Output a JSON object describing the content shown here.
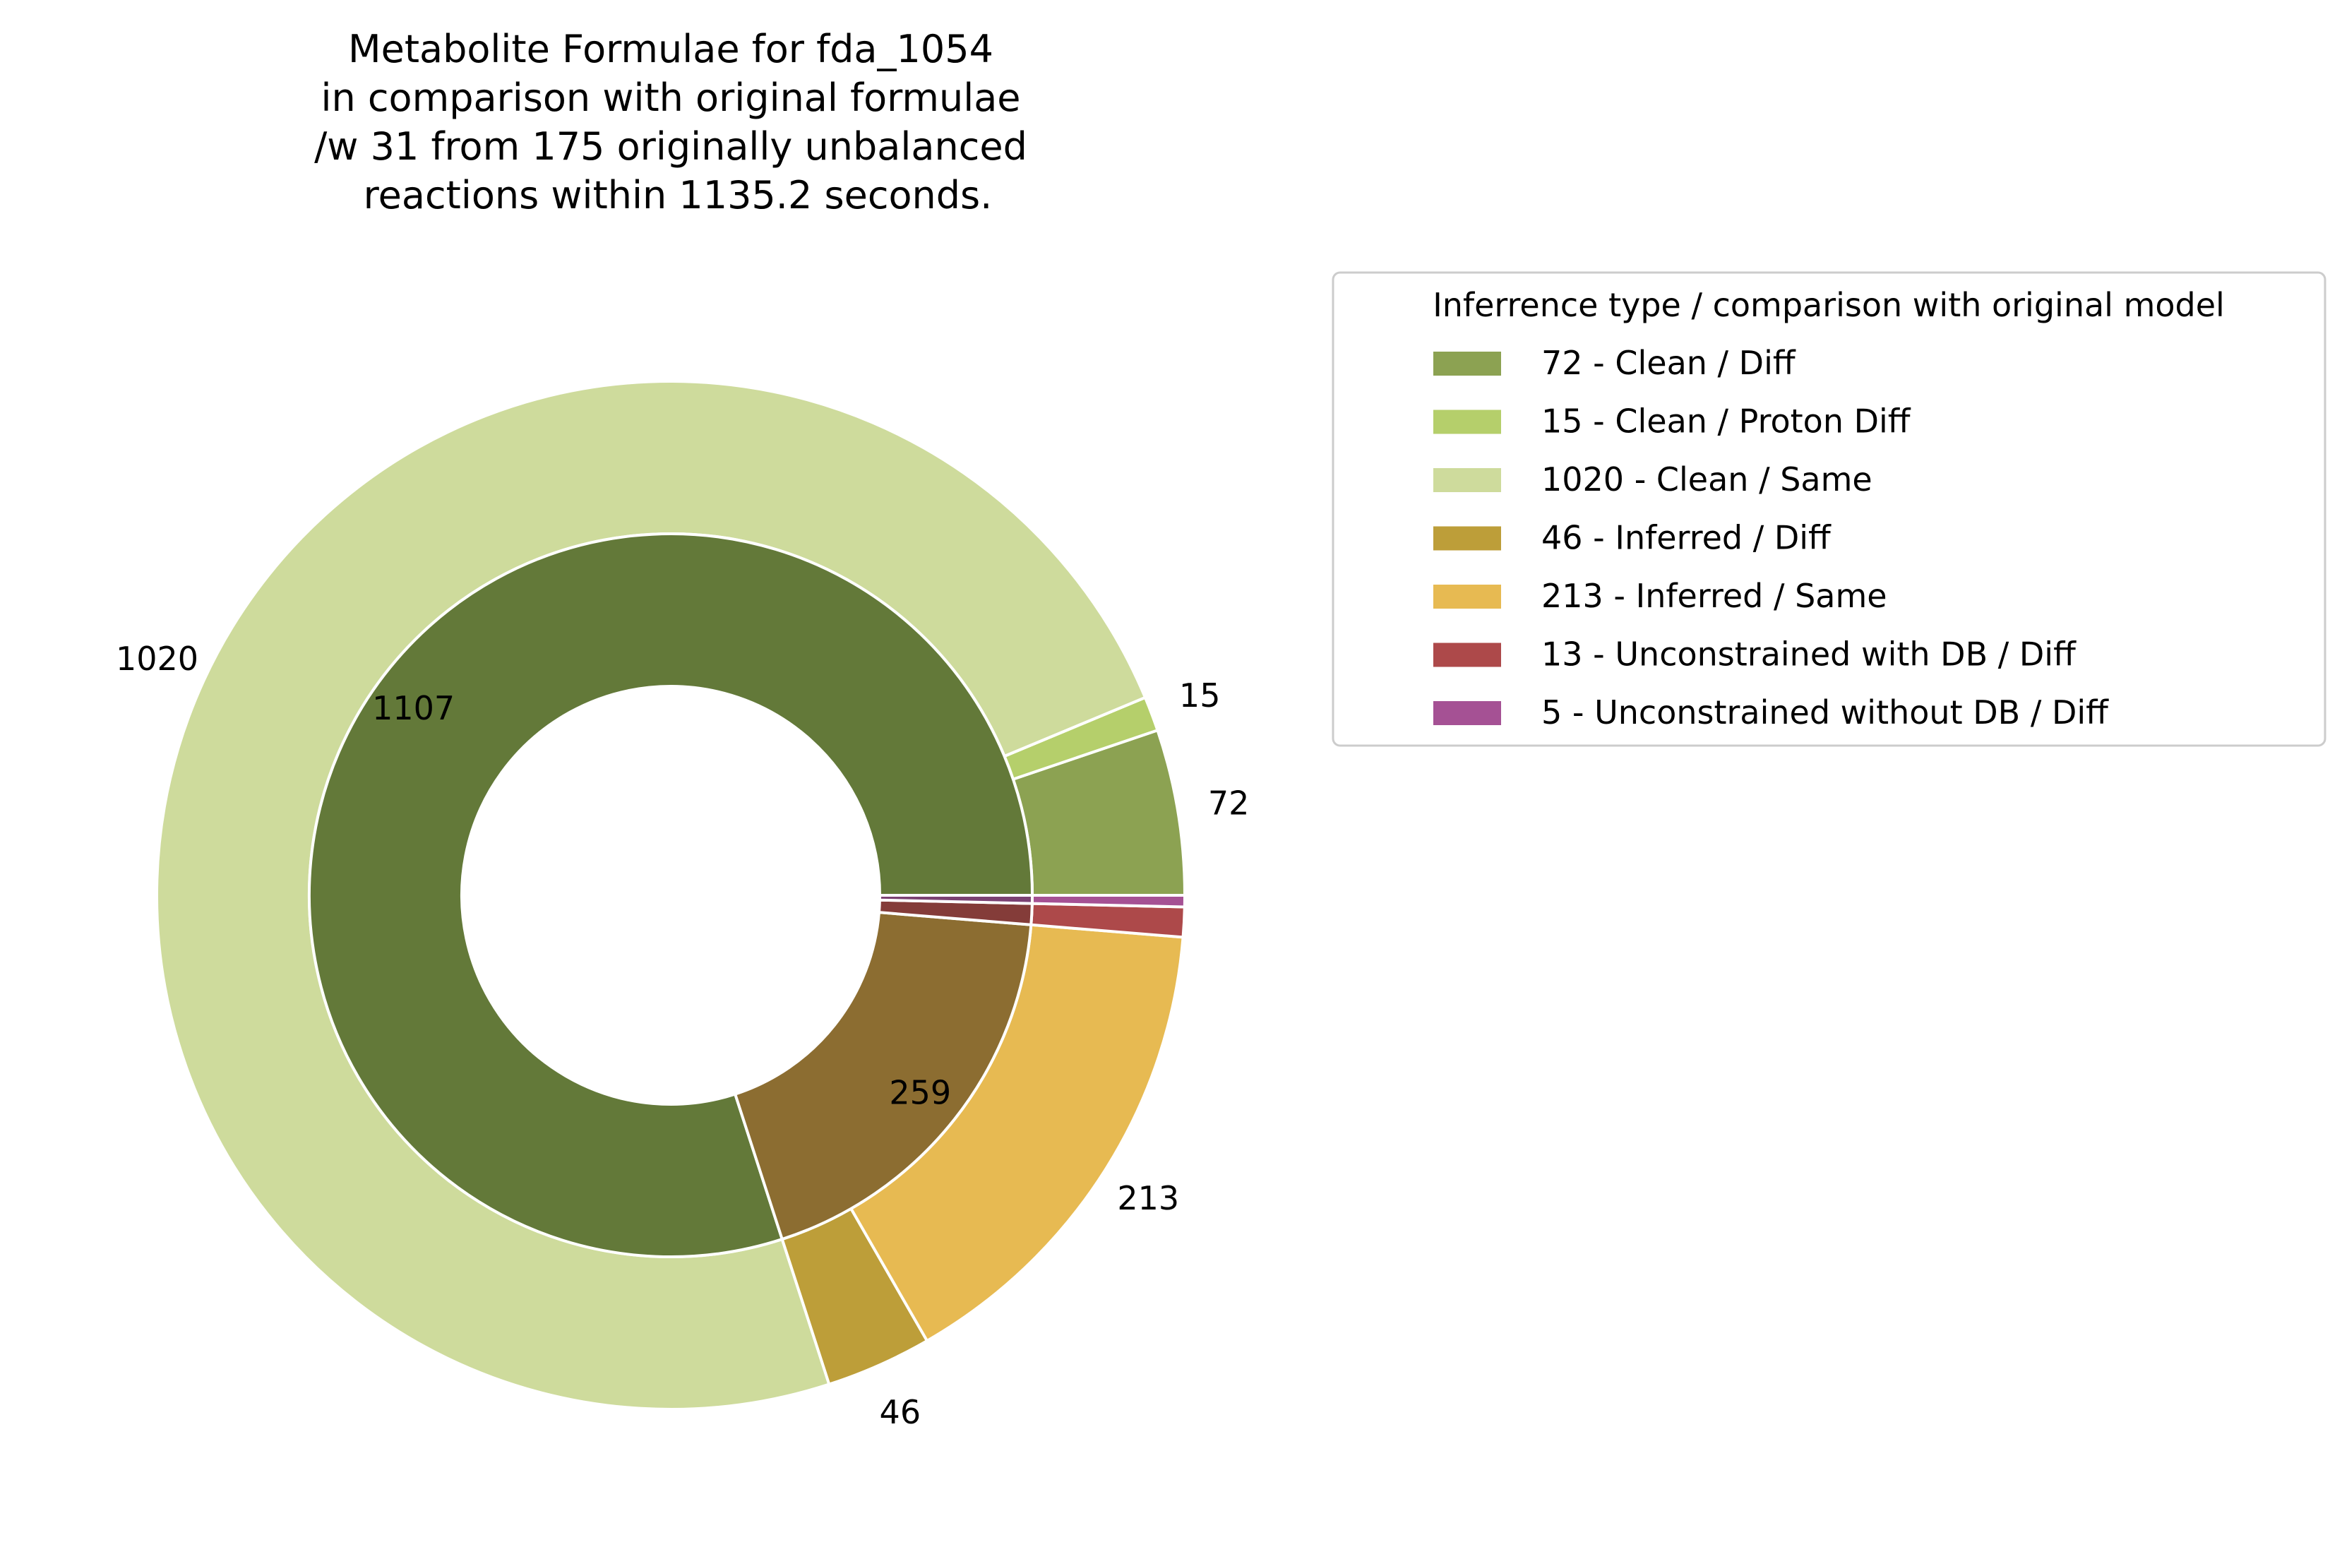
{
  "chart_data": {
    "type": "pie",
    "variant": "nested-donut",
    "title_lines": [
      "Metabolite Formulae for fda_1054",
      "in comparison with original formulae",
      "/w 31 from 175 originally unbalanced",
      "reactions within 1135.2 seconds."
    ],
    "legend": {
      "title": "Inferrence type / comparison with original model",
      "placement": "right",
      "entries": [
        {
          "label": "72 - Clean / Diff",
          "color": "#8ca252"
        },
        {
          "label": "15 - Clean / Proton Diff",
          "color": "#b5cf6b"
        },
        {
          "label": "1020 - Clean / Same",
          "color": "#cedb9c"
        },
        {
          "label": "46 - Inferred / Diff",
          "color": "#bd9e39"
        },
        {
          "label": "213 - Inferred / Same",
          "color": "#e7ba52"
        },
        {
          "label": "13 - Unconstrained with DB / Diff",
          "color": "#ad494a"
        },
        {
          "label": "5 - Unconstrained without DB / Diff",
          "color": "#a55194"
        }
      ]
    },
    "outer_ring": [
      {
        "label": "72",
        "value": 72,
        "color": "#8ca252"
      },
      {
        "label": "15",
        "value": 15,
        "color": "#b5cf6b"
      },
      {
        "label": "1020",
        "value": 1020,
        "color": "#cedb9c"
      },
      {
        "label": "46",
        "value": 46,
        "color": "#bd9e39"
      },
      {
        "label": "213",
        "value": 213,
        "color": "#e7ba52"
      },
      {
        "label": "13",
        "value": 13,
        "color": "#ad494a"
      },
      {
        "label": "5",
        "value": 5,
        "color": "#a55194"
      }
    ],
    "inner_ring": [
      {
        "label": "1107",
        "value": 1107,
        "color": "#637939"
      },
      {
        "label": "259",
        "value": 259,
        "color": "#8c6d31"
      },
      {
        "label": "",
        "value": 13,
        "color": "#843c39"
      },
      {
        "label": "",
        "value": 5,
        "color": "#7b4173"
      }
    ]
  }
}
